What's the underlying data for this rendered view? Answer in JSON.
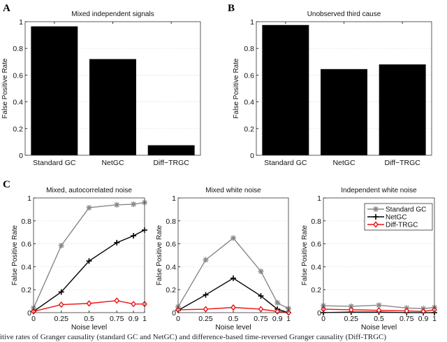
{
  "panel_labels": [
    "A",
    "B",
    "C"
  ],
  "caption_fragment": "itive rates of Granger causality (standard GC and NetGC) and difference-based time-reversed Granger causality (Diff-TRGC)",
  "chart_data": [
    {
      "type": "bar",
      "title": "Mixed independent signals",
      "ylabel": "False Positive Rate",
      "categories": [
        "Standard GC",
        "NetGC",
        "Diff−TRGC"
      ],
      "values": [
        0.965,
        0.72,
        0.075
      ],
      "ylim": [
        0,
        1
      ],
      "yticks": [
        "0",
        "0.2",
        "0.4",
        "0.6",
        "0.8",
        "1"
      ],
      "grid": true,
      "color": "#000000"
    },
    {
      "type": "bar",
      "title": "Unobserved third cause",
      "ylabel": "False Positive Rate",
      "categories": [
        "Standard GC",
        "NetGC",
        "Diff−TRGC"
      ],
      "values": [
        0.975,
        0.645,
        0.68
      ],
      "ylim": [
        0,
        1
      ],
      "yticks": [
        "0",
        "0.2",
        "0.4",
        "0.6",
        "0.8",
        "1"
      ],
      "grid": true,
      "color": "#000000"
    },
    {
      "type": "line",
      "title": "Mixed, autocorrelated noise",
      "xlabel": "Noise level",
      "ylabel": "False Positive Rate",
      "x": [
        0,
        0.25,
        0.5,
        0.75,
        0.9,
        1
      ],
      "xticks": [
        "0",
        "0.25",
        "0.5",
        "0.75",
        "0.9",
        "1"
      ],
      "yticks": [
        "0",
        "0.2",
        "0.4",
        "0.6",
        "0.8",
        "1"
      ],
      "xlim": [
        0,
        1
      ],
      "ylim": [
        0,
        1
      ],
      "grid": true,
      "series": [
        {
          "name": "Standard GC",
          "color": "#888888",
          "marker": "star",
          "values": [
            0.04,
            0.585,
            0.915,
            0.94,
            0.945,
            0.96
          ]
        },
        {
          "name": "NetGC",
          "color": "#000000",
          "marker": "plus",
          "values": [
            0.01,
            0.18,
            0.45,
            0.61,
            0.67,
            0.72
          ]
        },
        {
          "name": "Diff-TRGC",
          "color": "#ee1111",
          "marker": "diamond",
          "values": [
            0.01,
            0.07,
            0.08,
            0.105,
            0.075,
            0.075
          ]
        }
      ]
    },
    {
      "type": "line",
      "title": "Mixed white noise",
      "xlabel": "Noise level",
      "ylabel": "False Positive Rate",
      "x": [
        0,
        0.25,
        0.5,
        0.75,
        0.9,
        1
      ],
      "xticks": [
        "0",
        "0.25",
        "0.5",
        "0.75",
        "0.9",
        "1"
      ],
      "yticks": [
        "0",
        "0.2",
        "0.4",
        "0.6",
        "0.8",
        "1"
      ],
      "xlim": [
        0,
        1
      ],
      "ylim": [
        0,
        1
      ],
      "grid": true,
      "series": [
        {
          "name": "Standard GC",
          "color": "#888888",
          "marker": "star",
          "values": [
            0.05,
            0.46,
            0.65,
            0.36,
            0.085,
            0.035
          ]
        },
        {
          "name": "NetGC",
          "color": "#000000",
          "marker": "plus",
          "values": [
            0.02,
            0.155,
            0.3,
            0.145,
            0.03,
            0.0
          ]
        },
        {
          "name": "Diff-TRGC",
          "color": "#ee1111",
          "marker": "diamond",
          "values": [
            0.025,
            0.03,
            0.045,
            0.03,
            0.01,
            0.0
          ]
        }
      ]
    },
    {
      "type": "line",
      "title": "Independent white noise",
      "xlabel": "Noise level",
      "ylabel": "False Positive Rate",
      "x": [
        0,
        0.25,
        0.5,
        0.75,
        0.9,
        1
      ],
      "xticks": [
        "0",
        "0.25",
        "0.5",
        "0.75",
        "0.9",
        "1"
      ],
      "yticks": [
        "0",
        "0.2",
        "0.4",
        "0.6",
        "0.8",
        "1"
      ],
      "xlim": [
        0,
        1
      ],
      "ylim": [
        0,
        1
      ],
      "grid": true,
      "legend": "top-right",
      "series": [
        {
          "name": "Standard GC",
          "color": "#888888",
          "marker": "star",
          "values": [
            0.06,
            0.055,
            0.065,
            0.04,
            0.035,
            0.045
          ]
        },
        {
          "name": "NetGC",
          "color": "#000000",
          "marker": "plus",
          "values": [
            0.0,
            0.005,
            0.005,
            0.0,
            0.0,
            0.0
          ]
        },
        {
          "name": "Diff-TRGC",
          "color": "#ee1111",
          "marker": "diamond",
          "values": [
            0.03,
            0.025,
            0.02,
            0.015,
            0.01,
            0.025
          ]
        }
      ]
    }
  ]
}
